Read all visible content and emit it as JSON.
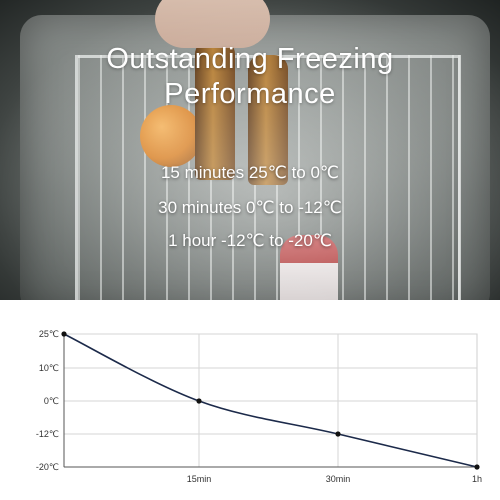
{
  "hero": {
    "title_line1": "Outstanding Freezing",
    "title_line2": "Performance",
    "features": [
      "15 minutes 25℃ to 0℃",
      "30 minutes 0℃ to -12℃",
      "1 hour -12℃ to -20℃"
    ]
  },
  "chart_data": {
    "type": "line",
    "title": "",
    "xlabel": "",
    "ylabel": "",
    "x_ticks": [
      "15min",
      "30min",
      "1h"
    ],
    "y_ticks": [
      "25℃",
      "10℃",
      "0℃",
      "-12℃",
      "-20℃"
    ],
    "series": [
      {
        "points": [
          {
            "x": 0,
            "y": 25
          },
          {
            "x": 15,
            "y": 0
          },
          {
            "x": 30,
            "y": -12
          },
          {
            "x": 60,
            "y": -20
          }
        ]
      }
    ],
    "line_color": "#1c2a4a",
    "grid": true
  }
}
